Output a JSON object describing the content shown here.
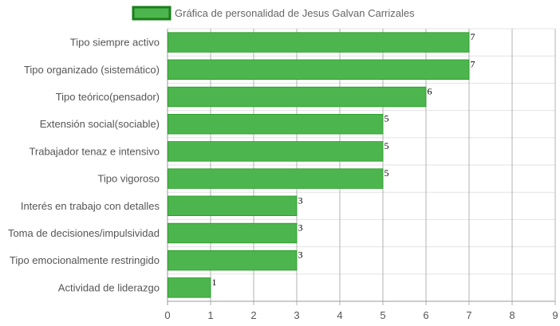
{
  "chart_data": {
    "type": "bar",
    "orientation": "horizontal",
    "categories": [
      "Tipo siempre activo",
      "Tipo organizado (sistemático)",
      "Tipo teórico(pensador)",
      "Extensión social(sociable)",
      "Trabajador tenaz e intensivo",
      "Tipo vigoroso",
      "Interés en trabajo con detalles",
      "Toma de decisiones/impulsividad",
      "Tipo emocionalmente restringido",
      "Actividad de liderazgo"
    ],
    "series": [
      {
        "name": "Gráfica de personalidad de Jesus Galvan Carrizales",
        "values": [
          7,
          7,
          6,
          5,
          5,
          5,
          3,
          3,
          3,
          1
        ]
      }
    ],
    "xlim": [
      0,
      9
    ],
    "xticks": [
      "0",
      "1",
      "2",
      "3",
      "4",
      "5",
      "6",
      "7",
      "8",
      "9"
    ],
    "grid": true,
    "legend_position": "top-center",
    "colors": {
      "bar_fill": "#4db54d",
      "bar_border": "#229922",
      "legend_fill": "#4db54d",
      "legend_border": "#1a7f1a",
      "grid": "#e3e3e3",
      "grid_major": "#999999"
    }
  }
}
